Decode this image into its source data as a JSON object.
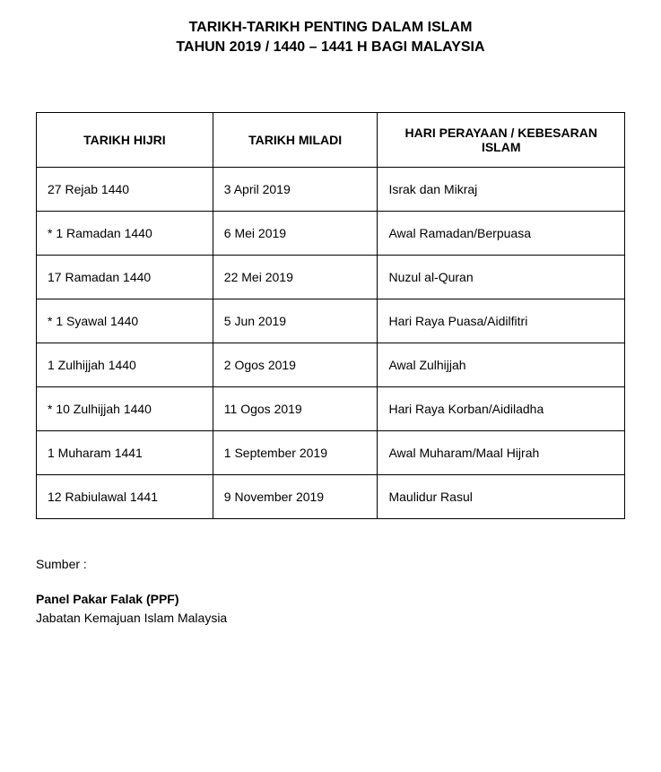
{
  "title": {
    "line1": "TARIKH-TARIKH PENTING DALAM ISLAM",
    "line2": "TAHUN 2019 / 1440 – 1441 H BAGI MALAYSIA"
  },
  "table": {
    "type": "table",
    "background_color": "#ffffff",
    "border_color": "#000000",
    "font_size": 14,
    "header_font_weight": "bold",
    "columns": [
      {
        "label": "TARIKH HIJRI",
        "width": "30%",
        "align": "left"
      },
      {
        "label": "TARIKH MILADI",
        "width": "28%",
        "align": "left"
      },
      {
        "label": "HARI PERAYAAN / KEBESARAN ISLAM",
        "width": "42%",
        "align": "left"
      }
    ],
    "rows": [
      [
        "27 Rejab 1440",
        "3 April 2019",
        "Israk dan Mikraj"
      ],
      [
        "* 1 Ramadan 1440",
        "6 Mei 2019",
        "Awal Ramadan/Berpuasa"
      ],
      [
        "17 Ramadan 1440",
        "22 Mei 2019",
        "Nuzul al-Quran"
      ],
      [
        "* 1 Syawal 1440",
        "5 Jun 2019",
        "Hari Raya Puasa/Aidilfitri"
      ],
      [
        "1 Zulhijjah 1440",
        "2 Ogos 2019",
        "Awal Zulhijjah"
      ],
      [
        "* 10 Zulhijjah 1440",
        "11 Ogos 2019",
        "Hari Raya Korban/Aidiladha"
      ],
      [
        "1 Muharam 1441",
        "1 September 2019",
        "Awal Muharam/Maal Hijrah"
      ],
      [
        "12 Rabiulawal 1441",
        "9 November 2019",
        "Maulidur Rasul"
      ]
    ]
  },
  "footer": {
    "label": "Sumber :",
    "source_line1": "Panel Pakar Falak (PPF)",
    "source_line2": "Jabatan Kemajuan Islam Malaysia"
  },
  "styles": {
    "title_fontsize": 16,
    "title_fontweight": "bold",
    "body_fontsize": 14,
    "text_color": "#000000",
    "background_color": "#ffffff"
  }
}
